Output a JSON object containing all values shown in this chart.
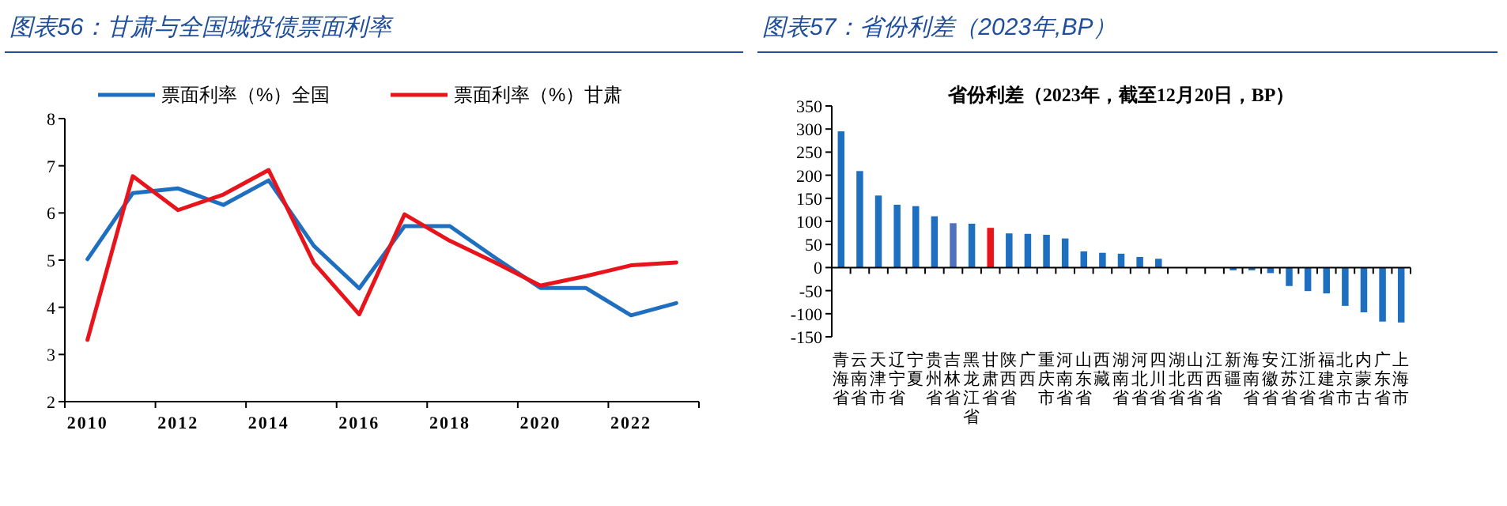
{
  "chart_data": [
    {
      "type": "line",
      "title": "图表56：甘肃与全国城投债票面利率",
      "categories": [
        "2010",
        null,
        "2012",
        null,
        "2014",
        null,
        "2016",
        null,
        "2018",
        null,
        "2020",
        null,
        "2022",
        null
      ],
      "series": [
        {
          "name": "票面利率（%）全国",
          "color": "#1f6fc0",
          "values": [
            5.02,
            6.42,
            6.52,
            6.17,
            6.69,
            5.3,
            4.4,
            5.72,
            5.72,
            5.05,
            4.41,
            4.41,
            3.83,
            4.09
          ]
        },
        {
          "name": "票面利率（%）甘肃",
          "color": "#e8141c",
          "values": [
            3.31,
            6.78,
            6.06,
            6.39,
            6.91,
            4.94,
            3.85,
            5.97,
            5.41,
            4.95,
            4.46,
            4.66,
            4.89,
            4.95
          ]
        }
      ],
      "ylim": [
        2,
        8
      ],
      "yticks": [
        2,
        3,
        4,
        5,
        6,
        7,
        8
      ],
      "legend": "top"
    },
    {
      "type": "bar",
      "title": "图表57：省份利差（2023年,BP）",
      "subtitle": "省份利差（2023年，截至12月20日，BP）",
      "categories": [
        "青海省",
        "云南省",
        "天津市",
        "辽宁省",
        "宁夏",
        "贵州省",
        "吉林省",
        "黑龙江省",
        "甘肃省",
        "陕西省",
        "广西",
        "重庆市",
        "河南省",
        "山东省",
        "西藏",
        "湖南省",
        "河北省",
        "四川省",
        "湖北省",
        "山西省",
        "江西省",
        "新疆",
        "海南省",
        "安徽省",
        "江苏省",
        "浙江省",
        "福建省",
        "北京市",
        "内蒙古",
        "广东省",
        "上海市"
      ],
      "values": [
        295,
        209,
        156,
        136,
        133,
        111,
        96,
        95,
        86,
        74,
        73,
        71,
        63,
        35,
        32,
        30,
        23,
        19,
        null,
        null,
        null,
        -6,
        -6,
        -12,
        -40,
        -51,
        -56,
        -83,
        -97,
        -117,
        -119
      ],
      "colors": [
        "#1f6fc0",
        "#1f6fc0",
        "#1f6fc0",
        "#1f6fc0",
        "#1f6fc0",
        "#1f6fc0",
        "#4f71be",
        "#1f6fc0",
        "#e8141c",
        "#1f6fc0",
        "#1f6fc0",
        "#1f6fc0",
        "#1f6fc0",
        "#1f6fc0",
        "#1f6fc0",
        "#1f6fc0",
        "#1f6fc0",
        "#1f6fc0",
        null,
        null,
        null,
        "#1f6fc0",
        "#1f6fc0",
        "#1f6fc0",
        "#1f6fc0",
        "#1f6fc0",
        "#1f6fc0",
        "#1f6fc0",
        "#1f6fc0",
        "#1f6fc0",
        "#1f6fc0"
      ],
      "ylim": [
        -150,
        350
      ],
      "yticks": [
        -150,
        -100,
        -50,
        0,
        50,
        100,
        150,
        200,
        250,
        300,
        350
      ]
    }
  ]
}
